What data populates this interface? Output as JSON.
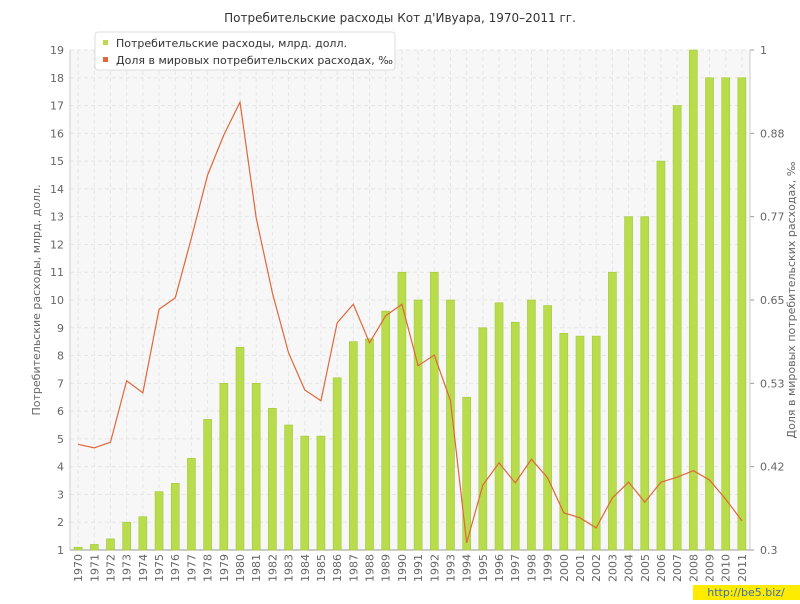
{
  "chart_data": {
    "type": "bar_line",
    "title": "Потребительские расходы Кот д'Ивуара, 1970–2011 гг.",
    "y_label": "Потребительские расходы, млрд. долл.",
    "y2_label": "Доля в мировых потребительских расходах, ‰",
    "watermark": "http://be5.biz/",
    "categories": [
      "1970",
      "1971",
      "1972",
      "1973",
      "1974",
      "1975",
      "1976",
      "1977",
      "1978",
      "1979",
      "1980",
      "1981",
      "1982",
      "1983",
      "1984",
      "1985",
      "1986",
      "1987",
      "1988",
      "1989",
      "1990",
      "1991",
      "1992",
      "1993",
      "1994",
      "1995",
      "1996",
      "1997",
      "1998",
      "1999",
      "2000",
      "2001",
      "2002",
      "2003",
      "2004",
      "2005",
      "2006",
      "2007",
      "2008",
      "2009",
      "2010",
      "2011"
    ],
    "series": [
      {
        "name": "Потребительские расходы, млрд. долл.",
        "color": "#b8dc4c",
        "kind": "bar",
        "values": [
          1.1,
          1.2,
          1.4,
          2.0,
          2.2,
          3.1,
          3.4,
          4.3,
          5.7,
          7.0,
          8.3,
          7.0,
          6.1,
          5.5,
          5.1,
          5.1,
          7.2,
          8.5,
          8.6,
          9.6,
          11,
          10,
          11,
          10,
          6.5,
          9.0,
          9.9,
          9.2,
          10,
          9.8,
          8.8,
          8.7,
          8.7,
          11,
          13,
          13,
          15,
          17,
          19,
          18,
          18,
          18
        ]
      },
      {
        "name": "Доля в мировых потребительских расходах, ‰",
        "color": "#e0673a",
        "kind": "line",
        "axis": "y2",
        "values": [
          0.448,
          0.443,
          0.451,
          0.537,
          0.52,
          0.637,
          0.653,
          0.737,
          0.825,
          0.881,
          0.927,
          0.765,
          0.66,
          0.576,
          0.524,
          0.509,
          0.618,
          0.644,
          0.59,
          0.628,
          0.644,
          0.558,
          0.573,
          0.509,
          0.31,
          0.391,
          0.422,
          0.394,
          0.427,
          0.401,
          0.352,
          0.345,
          0.331,
          0.373,
          0.395,
          0.367,
          0.395,
          0.402,
          0.411,
          0.398,
          0.371,
          0.341
        ]
      }
    ],
    "ylim": [
      1,
      19
    ],
    "yticks": [
      1,
      2,
      3,
      4,
      5,
      6,
      7,
      8,
      9,
      10,
      11,
      12,
      13,
      14,
      15,
      16,
      17,
      18,
      19
    ],
    "y2lim": [
      0.3,
      1
    ],
    "y2ticks": [
      0.3,
      {
        "value": 0.4167,
        "label": "0.42"
      },
      {
        "value": 0.5333,
        "label": "0.53"
      },
      0.65,
      {
        "value": 0.7667,
        "label": "0.77"
      },
      {
        "value": 0.8833,
        "label": "0.88"
      },
      1
    ],
    "grid": true,
    "legend": "top-left"
  }
}
